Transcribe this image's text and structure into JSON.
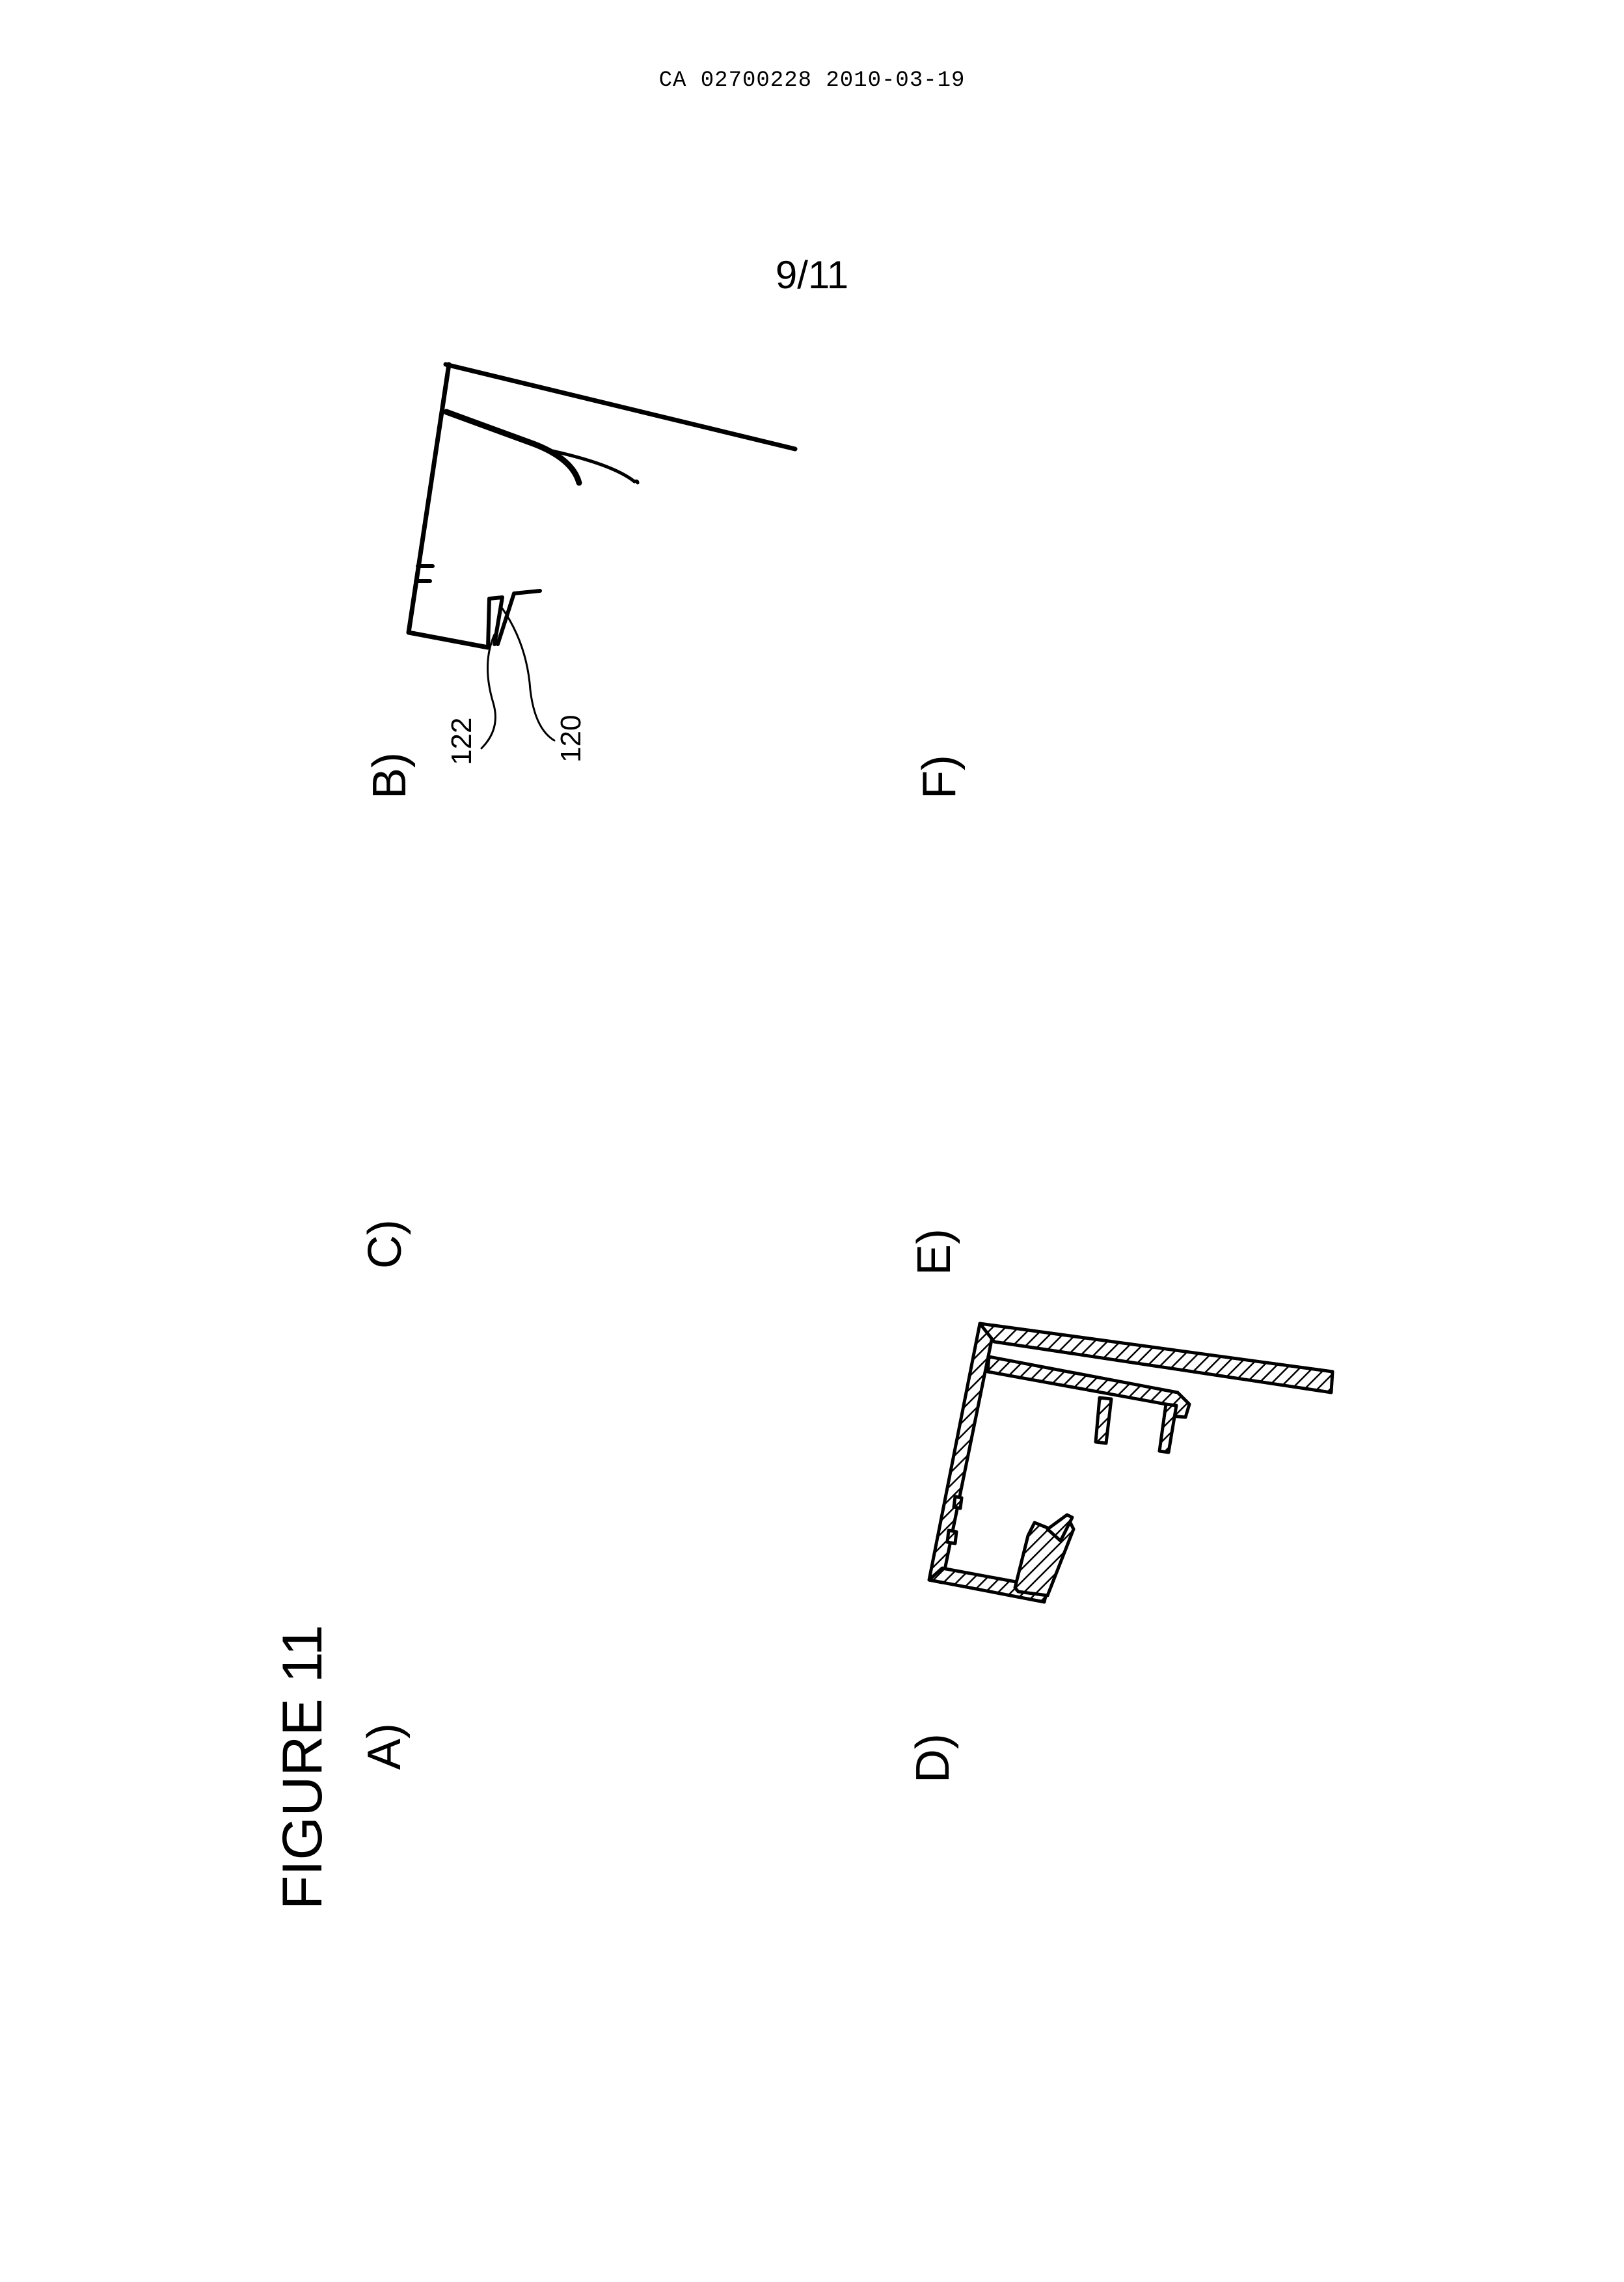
{
  "header": {
    "document_id": "CA 02700228 2010-03-19"
  },
  "page": {
    "number": "9/11"
  },
  "figure": {
    "title": "FIGURE 11",
    "panels": [
      {
        "label": "A)"
      },
      {
        "label": "B)"
      },
      {
        "label": "C)"
      },
      {
        "label": "D)"
      },
      {
        "label": "E)"
      },
      {
        "label": "F)"
      }
    ],
    "reference_numerals": [
      "122",
      "120"
    ]
  }
}
